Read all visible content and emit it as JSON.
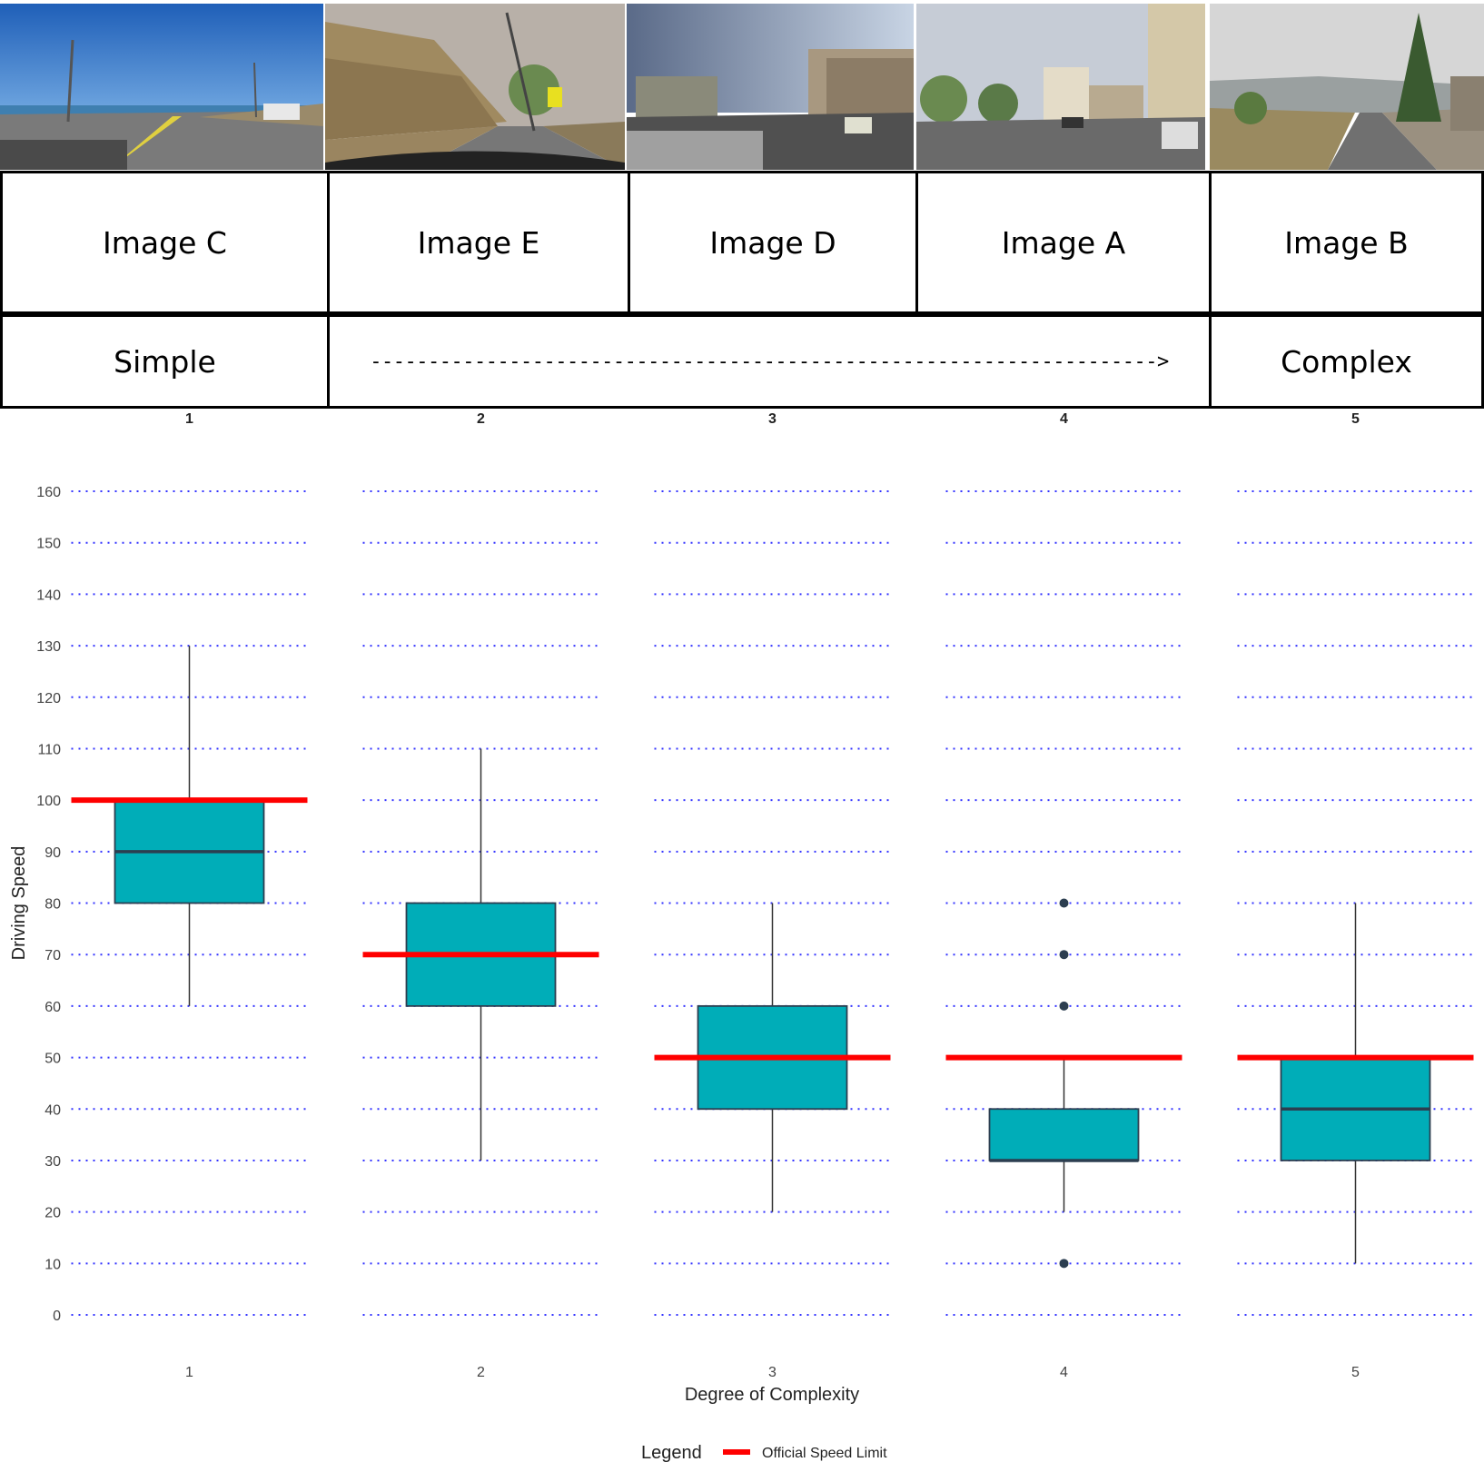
{
  "images": [
    {
      "label": "Image C",
      "scene": "coastal-highway-photo"
    },
    {
      "label": "Image E",
      "scene": "mountain-road-photo"
    },
    {
      "label": "Image D",
      "scene": "industrial-street-photo"
    },
    {
      "label": "Image A",
      "scene": "city-street-photo"
    },
    {
      "label": "Image B",
      "scene": "village-road-photo"
    }
  ],
  "scale": {
    "left_label": "Simple",
    "arrow": "-------------------------------------------------------------------->",
    "right_label": "Complex"
  },
  "colors": {
    "box_fill": "#00adb8",
    "box_stroke": "#2c3e50",
    "limit_line": "#ff0000",
    "grid": "#3333ff",
    "outlier": "#2c3e50"
  },
  "chart_data": {
    "type": "box",
    "ylabel": "Driving Speed",
    "xlabel": "Degree of Complexity",
    "ylim": [
      0,
      160
    ],
    "yticks": [
      0,
      10,
      20,
      30,
      40,
      50,
      60,
      70,
      80,
      90,
      100,
      110,
      120,
      130,
      140,
      150,
      160
    ],
    "grid": "dotted horizontal",
    "legend": {
      "title": "Legend",
      "entries": [
        {
          "name": "Official Speed Limit",
          "color": "#ff0000"
        }
      ],
      "position": "bottom"
    },
    "panels": [
      {
        "facet": "1",
        "category": "1",
        "whisker_low": 60,
        "q1": 80,
        "median": 90,
        "q3": 100,
        "whisker_high": 130,
        "outliers": [],
        "speed_limit": 100
      },
      {
        "facet": "2",
        "category": "2",
        "whisker_low": 30,
        "q1": 60,
        "median": 70,
        "q3": 80,
        "whisker_high": 110,
        "outliers": [],
        "speed_limit": 70
      },
      {
        "facet": "3",
        "category": "3",
        "whisker_low": 20,
        "q1": 40,
        "median": 50,
        "q3": 60,
        "whisker_high": 80,
        "outliers": [],
        "speed_limit": 50
      },
      {
        "facet": "4",
        "category": "4",
        "whisker_low": 20,
        "q1": 30,
        "median": 30,
        "q3": 40,
        "whisker_high": 50,
        "outliers": [
          10,
          60,
          70,
          80
        ],
        "speed_limit": 50
      },
      {
        "facet": "5",
        "category": "5",
        "whisker_low": 10,
        "q1": 30,
        "median": 40,
        "q3": 50,
        "whisker_high": 80,
        "outliers": [],
        "speed_limit": 50
      }
    ]
  }
}
